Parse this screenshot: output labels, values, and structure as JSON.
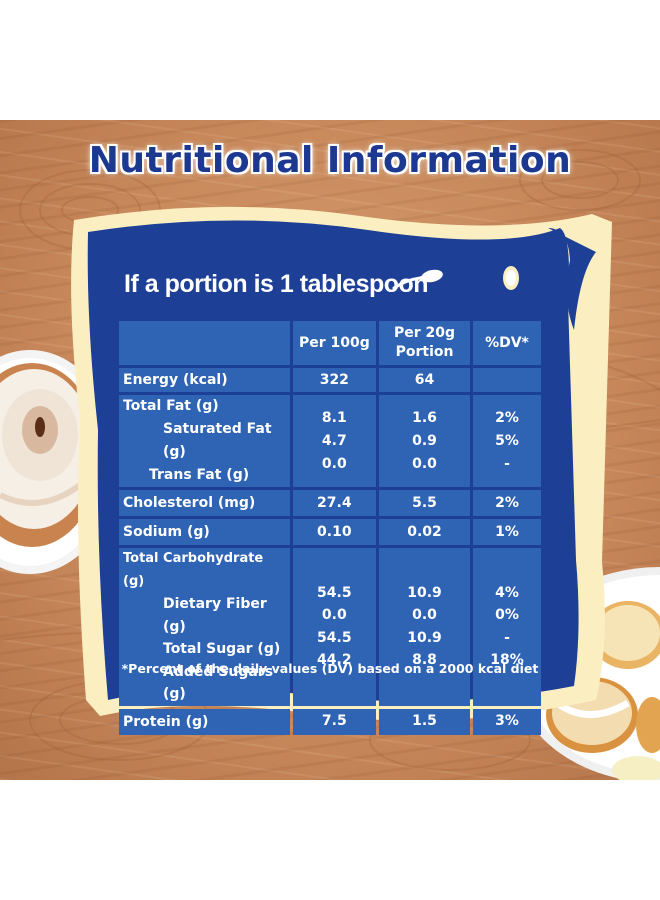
{
  "title": "Nutritional Information",
  "subtitle": "If a portion is 1 tablespoon",
  "icons": {
    "spoon": "spoon-icon",
    "left_food": "cinnamon-roll-plate",
    "right_food": "pancake-banana-plate"
  },
  "colors": {
    "panel_blue": "#1e3f96",
    "cell_blue": "#2f64b5",
    "frame_cream": "#fbefc2",
    "title_blue": "#1c3891"
  },
  "table": {
    "headers": {
      "per100": "Per 100g",
      "per20_line1": "Per 20g",
      "per20_line2": "Portion",
      "dv": "%DV*"
    },
    "rows": [
      {
        "label": "Energy (kcal)",
        "per100": "322",
        "per20": "64",
        "dv": ""
      },
      {
        "label": "Total Fat (g)",
        "per100": "8.1",
        "per20": "1.6",
        "dv": "2%"
      },
      {
        "label": "Saturated Fat (g)",
        "per100": "4.7",
        "per20": "0.9",
        "dv": "5%"
      },
      {
        "label": "Trans Fat (g)",
        "per100": "0.0",
        "per20": "0.0",
        "dv": "-"
      },
      {
        "label": "Cholesterol (mg)",
        "per100": "27.4",
        "per20": "5.5",
        "dv": "2%"
      },
      {
        "label": "Sodium (g)",
        "per100": "0.10",
        "per20": "0.02",
        "dv": "1%"
      },
      {
        "label": "Total Carbohydrate (g)",
        "per100": "54.5",
        "per20": "10.9",
        "dv": "4%"
      },
      {
        "label": "Dietary Fiber (g)",
        "per100": "0.0",
        "per20": "0.0",
        "dv": "0%"
      },
      {
        "label": "Total Sugar (g)",
        "per100": "54.5",
        "per20": "10.9",
        "dv": "-"
      },
      {
        "label": "Added Sugars (g)",
        "per100": "44.2",
        "per20": "8.8",
        "dv": "18%"
      },
      {
        "label": "Protein (g)",
        "per100": "7.5",
        "per20": "1.5",
        "dv": "3%"
      }
    ]
  },
  "footnote": "*Percent of the daily values (DV) based on a 2000 kcal diet"
}
